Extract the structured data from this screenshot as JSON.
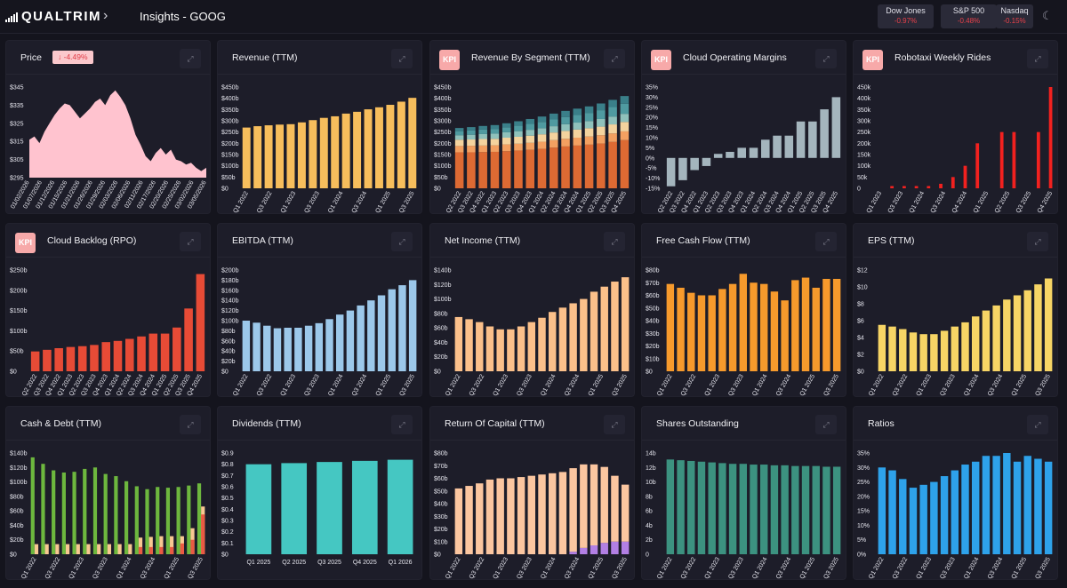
{
  "app": {
    "name": "QUALTRIM",
    "page_title": "Insights - GOOG",
    "chevron": "›",
    "moon": "☾"
  },
  "indices": [
    {
      "name": "Dow Jones",
      "change": "-0.97%"
    },
    {
      "name": "S&P 500",
      "change": "-0.48%"
    },
    {
      "name": "Nasdaq",
      "change": "-0.15%"
    }
  ],
  "charts": [
    {
      "title": "Price",
      "badge": "-4.49%",
      "kpi": false,
      "type": "area",
      "color": "#ffc3cf",
      "yticks": [
        "$345",
        "$335",
        "$325",
        "$315",
        "$305",
        "$295"
      ],
      "ymin": 292,
      "ymax": 347,
      "xlabels": [
        "01/02/2026",
        "01/07/2026",
        "01/12/2026",
        "01/15/2026",
        "01/21/2026",
        "01/26/2026",
        "01/29/2026",
        "02/03/2026",
        "02/06/2026",
        "02/11/2026",
        "02/17/2026",
        "02/20/2026",
        "02/25/2026",
        "03/02/2026",
        "03/05/2026"
      ],
      "values": [
        315,
        317,
        313,
        320,
        325,
        330,
        334,
        337,
        336,
        332,
        328,
        331,
        334,
        338,
        340,
        336,
        342,
        345,
        341,
        336,
        328,
        318,
        312,
        305,
        302,
        307,
        310,
        306,
        309,
        303,
        302,
        300,
        301,
        298,
        296,
        298
      ]
    },
    {
      "title": "Revenue (TTM)",
      "kpi": false,
      "type": "bar",
      "colors": [
        "#f7be5c"
      ],
      "yticks": [
        "$450b",
        "$400b",
        "$350b",
        "$300b",
        "$250b",
        "$200b",
        "$150b",
        "$100b",
        "$50b",
        "$0"
      ],
      "ymax": 450,
      "xlabels": [
        "Q1 2022",
        "Q3 2022",
        "Q1 2023",
        "Q3 2023",
        "Q1 2024",
        "Q3 2024",
        "Q1 2025",
        "Q3 2025"
      ],
      "series": [
        [
          270,
          276,
          280,
          283,
          285,
          293,
          303,
          313,
          320,
          332,
          340,
          351,
          360,
          371,
          385,
          402
        ]
      ]
    },
    {
      "title": "Revenue By Segment (TTM)",
      "kpi": true,
      "type": "stacked",
      "colors": [
        "#dd6a33",
        "#f3a061",
        "#f4d39e",
        "#8fc1bb",
        "#4f9aa0",
        "#3a7f89"
      ],
      "yticks": [
        "$450b",
        "$400b",
        "$350b",
        "$300b",
        "$250b",
        "$200b",
        "$150b",
        "$100b",
        "$50b",
        "$0"
      ],
      "ymax": 450,
      "xlabels": [
        "Q2 2022",
        "Q3 2022",
        "Q4 2022",
        "Q1 2023",
        "Q2 2023",
        "Q3 2023",
        "Q4 2023",
        "Q1 2024",
        "Q2 2024",
        "Q3 2024",
        "Q4 2024",
        "Q1 2025",
        "Q2 2025",
        "Q3 2025",
        "Q4 2025"
      ],
      "series": [
        [
          160,
          160,
          161,
          162,
          165,
          168,
          171,
          175,
          181,
          186,
          190,
          194,
          199,
          206,
          214
        ],
        [
          28,
          29,
          29,
          29,
          30,
          30,
          31,
          32,
          33,
          34,
          35,
          36,
          37,
          38,
          39
        ],
        [
          28,
          28,
          29,
          29,
          30,
          31,
          32,
          33,
          34,
          35,
          36,
          37,
          38,
          40,
          42
        ],
        [
          20,
          21,
          22,
          23,
          24,
          25,
          26,
          27,
          28,
          30,
          31,
          32,
          34,
          35,
          36
        ],
        [
          18,
          19,
          20,
          21,
          22,
          24,
          26,
          28,
          30,
          32,
          34,
          36,
          39,
          42,
          45
        ],
        [
          14,
          15,
          16,
          17,
          18,
          20,
          22,
          24,
          26,
          27,
          28,
          29,
          30,
          32,
          34
        ]
      ]
    },
    {
      "title": "Cloud Operating Margins",
      "kpi": true,
      "type": "bar",
      "colors": [
        "#a4b5bd"
      ],
      "yticks": [
        "35%",
        "30%",
        "25%",
        "20%",
        "15%",
        "10%",
        "5%",
        "0%",
        "-5%",
        "-10%",
        "-15%"
      ],
      "ymin": -15,
      "ymax": 35,
      "xlabels": [
        "Q2 2022",
        "Q3 2022",
        "Q4 2022",
        "Q1 2023",
        "Q2 2023",
        "Q3 2023",
        "Q4 2023",
        "Q1 2024",
        "Q2 2024",
        "Q3 2024",
        "Q4 2024",
        "Q1 2025",
        "Q2 2025",
        "Q3 2025",
        "Q4 2025"
      ],
      "series": [
        [
          -14,
          -11,
          -6,
          -4,
          2,
          3,
          5,
          5,
          9,
          11,
          11,
          18,
          18,
          24,
          30
        ]
      ]
    },
    {
      "title": "Robotaxi Weekly Rides",
      "kpi": true,
      "type": "bar",
      "colors": [
        "#f2211f"
      ],
      "yticks": [
        "450k",
        "400k",
        "350k",
        "300k",
        "250k",
        "200k",
        "150k",
        "100k",
        "50k",
        "0"
      ],
      "ymax": 450,
      "xlabels": [
        "Q1 2023",
        "Q3 2023",
        "Q1 2024",
        "Q3 2024",
        "Q4 2024",
        "Q1 2025",
        "Q2 2025",
        "Q3 2025",
        "Q4 2025"
      ],
      "series": [
        [
          0,
          0,
          10,
          0,
          10,
          0,
          10,
          0,
          10,
          0,
          20,
          0,
          50,
          0,
          100,
          0,
          200,
          0,
          0,
          0,
          250,
          0,
          250,
          0,
          0,
          0,
          250,
          0,
          450
        ]
      ],
      "thin": true
    },
    {
      "title": "Cloud Backlog (RPO)",
      "kpi": true,
      "type": "bar",
      "colors": [
        "#e74b36"
      ],
      "yticks": [
        "$250b",
        "$200b",
        "$150b",
        "$100b",
        "$50b",
        "$0"
      ],
      "ymax": 250,
      "xlabels": [
        "Q2 2022",
        "Q3 2022",
        "Q4 2022",
        "Q1 2023",
        "Q2 2023",
        "Q3 2023",
        "Q4 2023",
        "Q1 2024",
        "Q2 2024",
        "Q3 2024",
        "Q4 2024",
        "Q1 2025",
        "Q2 2025",
        "Q3 2025",
        "Q4 2025"
      ],
      "series": [
        [
          49,
          53,
          57,
          60,
          62,
          65,
          72,
          75,
          80,
          86,
          93,
          93,
          108,
          155,
          240
        ]
      ]
    },
    {
      "title": "EBITDA (TTM)",
      "kpi": false,
      "type": "bar",
      "colors": [
        "#9cc8ea"
      ],
      "yticks": [
        "$200b",
        "$180b",
        "$160b",
        "$140b",
        "$120b",
        "$100b",
        "$80b",
        "$60b",
        "$40b",
        "$20b",
        "$0"
      ],
      "ymax": 200,
      "xlabels": [
        "Q1 2022",
        "Q3 2022",
        "Q1 2023",
        "Q3 2023",
        "Q1 2024",
        "Q3 2024",
        "Q1 2025",
        "Q3 2025"
      ],
      "series": [
        [
          100,
          96,
          90,
          85,
          86,
          86,
          90,
          95,
          103,
          112,
          120,
          130,
          140,
          150,
          162,
          170,
          180
        ]
      ]
    },
    {
      "title": "Net Income (TTM)",
      "kpi": false,
      "type": "bar",
      "colors": [
        "#fbc08a"
      ],
      "yticks": [
        "$140b",
        "$120b",
        "$100b",
        "$80b",
        "$60b",
        "$40b",
        "$20b",
        "$0"
      ],
      "ymax": 140,
      "xlabels": [
        "Q1 2022",
        "Q3 2022",
        "Q1 2023",
        "Q3 2023",
        "Q1 2024",
        "Q3 2024",
        "Q1 2025",
        "Q3 2025"
      ],
      "series": [
        [
          75,
          72,
          68,
          62,
          58,
          58,
          62,
          68,
          74,
          82,
          88,
          94,
          100,
          110,
          117,
          124,
          130
        ]
      ]
    },
    {
      "title": "Free Cash Flow (TTM)",
      "kpi": false,
      "type": "bar",
      "colors": [
        "#f69a2c"
      ],
      "yticks": [
        "$80b",
        "$70b",
        "$60b",
        "$50b",
        "$40b",
        "$30b",
        "$20b",
        "$10b",
        "$0"
      ],
      "ymax": 80,
      "xlabels": [
        "Q1 2022",
        "Q3 2022",
        "Q1 2023",
        "Q3 2023",
        "Q1 2024",
        "Q3 2024",
        "Q1 2025",
        "Q3 2025"
      ],
      "series": [
        [
          69,
          66,
          62,
          60,
          60,
          65,
          69,
          77,
          70,
          69,
          63,
          56,
          72,
          74,
          66,
          73,
          73
        ]
      ]
    },
    {
      "title": "EPS (TTM)",
      "kpi": false,
      "type": "bar",
      "colors": [
        "#f7d565"
      ],
      "yticks": [
        "$12",
        "$10",
        "$8",
        "$6",
        "$4",
        "$2",
        "$0"
      ],
      "ymax": 12,
      "xlabels": [
        "Q1 2022",
        "Q3 2022",
        "Q1 2023",
        "Q3 2023",
        "Q1 2024",
        "Q3 2024",
        "Q1 2025",
        "Q3 2025"
      ],
      "series": [
        [
          5.5,
          5.3,
          5,
          4.6,
          4.4,
          4.4,
          4.8,
          5.3,
          5.8,
          6.5,
          7.2,
          7.8,
          8.5,
          9,
          9.6,
          10.3,
          11
        ]
      ]
    },
    {
      "title": "Cash & Debt (TTM)",
      "kpi": false,
      "type": "grouped",
      "colors": [
        "#6db73e",
        "#f8c892",
        "#ea5a43"
      ],
      "yticks": [
        "$140b",
        "$120b",
        "$100b",
        "$80b",
        "$60b",
        "$40b",
        "$20b",
        "$0"
      ],
      "ymax": 140,
      "xlabels": [
        "Q1 2022",
        "Q3 2022",
        "Q1 2023",
        "Q3 2023",
        "Q1 2024",
        "Q3 2024",
        "Q1 2025",
        "Q3 2025"
      ],
      "series": [
        [
          134,
          125,
          116,
          113,
          114,
          118,
          120,
          111,
          108,
          101,
          94,
          90,
          93,
          92,
          93,
          95,
          98
        ],
        [
          14,
          14,
          14,
          14,
          14,
          14,
          14,
          14,
          14,
          14,
          23,
          24,
          25,
          25,
          25,
          36,
          66
        ],
        [
          0,
          0,
          0,
          0,
          0,
          0,
          0,
          0,
          0,
          0,
          10,
          10,
          10,
          10,
          15,
          20,
          55
        ]
      ]
    },
    {
      "title": "Dividends (TTM)",
      "kpi": false,
      "type": "bar",
      "colors": [
        "#45c7c2"
      ],
      "yticks": [
        "$0.9",
        "$0.8",
        "$0.7",
        "$0.6",
        "$0.5",
        "$0.4",
        "$0.3",
        "$0.2",
        "$0.1",
        "$0"
      ],
      "ymax": 0.9,
      "xlabels": [
        "Q1 2025",
        "Q2 2025",
        "Q3 2025",
        "Q4 2025",
        "Q1 2026"
      ],
      "series": [
        [
          0.8,
          0.81,
          0.82,
          0.83,
          0.84
        ]
      ],
      "wide": true
    },
    {
      "title": "Return Of Capital (TTM)",
      "kpi": false,
      "type": "stacked",
      "colors": [
        "#b27fe4",
        "#fbc6a0"
      ],
      "yticks": [
        "$80b",
        "$70b",
        "$60b",
        "$50b",
        "$40b",
        "$30b",
        "$20b",
        "$10b",
        "$0"
      ],
      "ymax": 80,
      "xlabels": [
        "Q1 2022",
        "Q3 2022",
        "Q1 2023",
        "Q3 2023",
        "Q1 2024",
        "Q3 2024",
        "Q1 2025",
        "Q3 2025"
      ],
      "series": [
        [
          0,
          0,
          0,
          0,
          0,
          0,
          0,
          0,
          0,
          0,
          0,
          2,
          5,
          7,
          9,
          10,
          10
        ],
        [
          52,
          54,
          56,
          59,
          60,
          60,
          61,
          62,
          63,
          64,
          65,
          66,
          66,
          64,
          60,
          52,
          45
        ]
      ]
    },
    {
      "title": "Shares Outstanding",
      "kpi": false,
      "type": "bar",
      "colors": [
        "#3c9280"
      ],
      "yticks": [
        "14b",
        "12b",
        "10b",
        "8b",
        "6b",
        "4b",
        "2b",
        "0"
      ],
      "ymax": 14,
      "xlabels": [
        "Q1 2022",
        "Q3 2022",
        "Q1 2023",
        "Q3 2023",
        "Q1 2024",
        "Q3 2024",
        "Q1 2025",
        "Q3 2025"
      ],
      "series": [
        [
          13.1,
          13.0,
          12.9,
          12.8,
          12.7,
          12.6,
          12.5,
          12.5,
          12.4,
          12.4,
          12.3,
          12.3,
          12.2,
          12.2,
          12.2,
          12.1,
          12.1
        ]
      ]
    },
    {
      "title": "Ratios",
      "kpi": false,
      "type": "bar",
      "colors": [
        "#2ea2ea"
      ],
      "yticks": [
        "35%",
        "30%",
        "25%",
        "20%",
        "15%",
        "10%",
        "5%",
        "0%"
      ],
      "ymax": 35,
      "xlabels": [
        "Q1 2022",
        "Q3 2022",
        "Q1 2023",
        "Q3 2023",
        "Q1 2024",
        "Q3 2024",
        "Q1 2025",
        "Q3 2025"
      ],
      "series": [
        [
          30,
          29,
          26,
          23,
          24,
          25,
          27,
          29,
          31,
          32,
          34,
          34,
          35,
          32,
          34,
          33,
          32
        ]
      ]
    }
  ]
}
